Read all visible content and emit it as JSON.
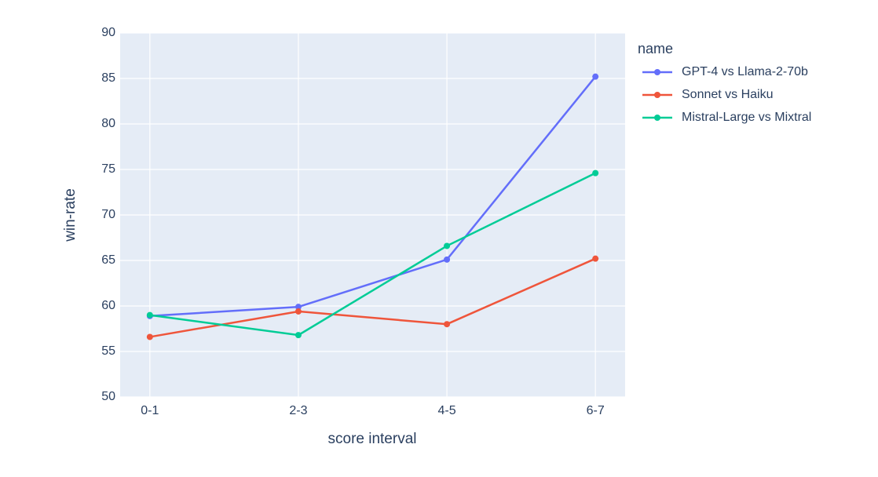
{
  "chart_data": {
    "type": "line",
    "xlabel": "score interval",
    "ylabel": "win-rate",
    "legend_title": "name",
    "categories": [
      "0-1",
      "2-3",
      "4-5",
      "6-7"
    ],
    "series": [
      {
        "name": "GPT-4 vs Llama-2-70b",
        "color": "#636efa",
        "values": [
          58.9,
          59.9,
          65.1,
          85.2
        ]
      },
      {
        "name": "Sonnet vs Haiku",
        "color": "#ef553b",
        "values": [
          56.6,
          59.4,
          58.0,
          65.2
        ]
      },
      {
        "name": "Mistral-Large vs Mixtral",
        "color": "#00cc96",
        "values": [
          59.0,
          56.8,
          66.6,
          74.6
        ]
      }
    ],
    "ylim": [
      50,
      90
    ],
    "yticks": [
      50,
      55,
      60,
      65,
      70,
      75,
      80,
      85,
      90
    ],
    "grid": true,
    "legend": "right"
  }
}
